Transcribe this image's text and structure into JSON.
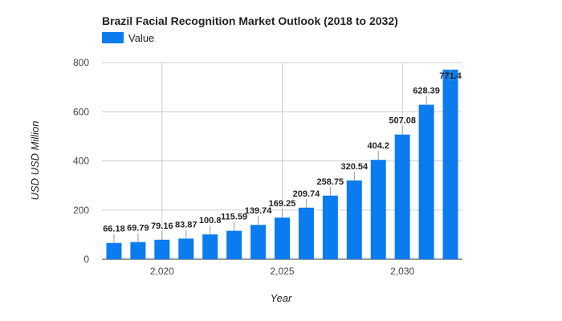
{
  "chart_data": {
    "type": "bar",
    "title": "Brazil Facial Recognition Market Outlook (2018 to 2032)",
    "xlabel": "Year",
    "ylabel": "USD USD Million",
    "legend": {
      "position": "top-left",
      "entries": [
        "Value"
      ]
    },
    "series": [
      {
        "name": "Value",
        "color": "#0a7cf0",
        "x": [
          2018,
          2019,
          2020,
          2021,
          2022,
          2023,
          2024,
          2025,
          2026,
          2027,
          2028,
          2029,
          2030,
          2031,
          2032
        ],
        "values": [
          66.18,
          69.79,
          79.16,
          83.87,
          100.8,
          115.59,
          139.74,
          169.25,
          209.74,
          258.75,
          320.54,
          404.2,
          507.08,
          628.39,
          771.4
        ],
        "labels": [
          "66.18",
          "69.79",
          "79.16",
          "83.87",
          "100.8",
          "115.59",
          "139.74",
          "169.25",
          "209.74",
          "258.75",
          "320.54",
          "404.2",
          "507.08",
          "628.39",
          "771.4"
        ]
      }
    ],
    "ylim": [
      0,
      800
    ],
    "y_ticks": [
      0,
      200,
      400,
      600,
      800
    ],
    "y_tick_labels": [
      "0",
      "200",
      "400",
      "600",
      "800"
    ],
    "x_ticks": [
      2020,
      2025,
      2030
    ],
    "x_tick_labels": [
      "2,020",
      "2,025",
      "2,030"
    ],
    "grid": true
  }
}
